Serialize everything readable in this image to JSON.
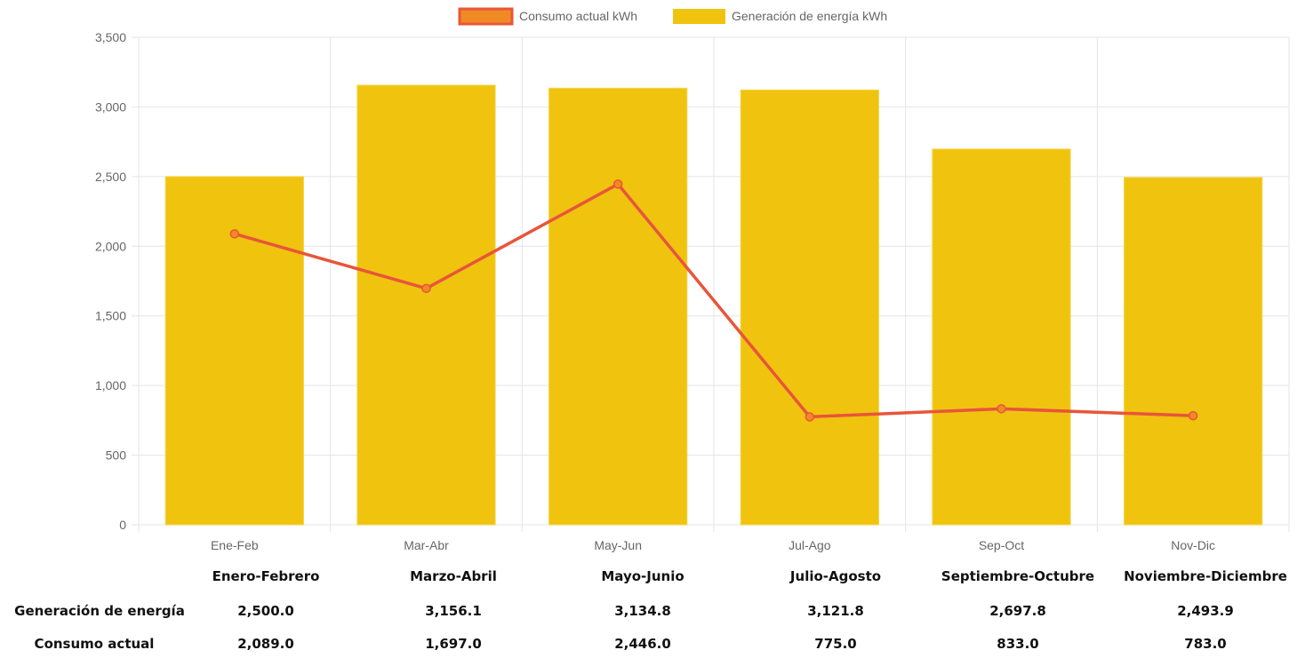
{
  "chart_data": {
    "type": "bar",
    "categories": [
      "Ene-Feb",
      "Mar-Abr",
      "May-Jun",
      "Jul-Ago",
      "Sep-Oct",
      "Nov-Dic"
    ],
    "series": [
      {
        "name": "Generación de energía kWh",
        "type": "bar",
        "color": "#f0c30f",
        "values": [
          2500.0,
          3156.1,
          3134.8,
          3121.8,
          2697.8,
          2493.9
        ]
      },
      {
        "name": "Consumo actual kWh",
        "type": "line",
        "color": "#e8553a",
        "values": [
          2089.0,
          1697.0,
          2446.0,
          775.0,
          833.0,
          783.0
        ]
      }
    ],
    "legend_order": [
      "Consumo actual kWh",
      "Generación de energía kWh"
    ],
    "ylim": [
      0,
      3500
    ],
    "yticks": [
      "0",
      "500",
      "1,000",
      "1,500",
      "2,000",
      "2,500",
      "3,000",
      "3,500"
    ],
    "grid": true,
    "legend_position": "top-center"
  },
  "summary_table": {
    "periods": [
      "Enero-Febrero",
      "Marzo-Abril",
      "Mayo-Junio",
      "Julio-Agosto",
      "Septiembre-Octubre",
      "Noviembre-Diciembre"
    ],
    "rows": [
      {
        "label": "Generación de energía",
        "values": [
          "2,500.0",
          "3,156.1",
          "3,134.8",
          "3,121.8",
          "2,697.8",
          "2,493.9"
        ]
      },
      {
        "label": "Consumo actual",
        "values": [
          "2,089.0",
          "1,697.0",
          "2,446.0",
          "775.0",
          "833.0",
          "783.0"
        ]
      }
    ]
  }
}
